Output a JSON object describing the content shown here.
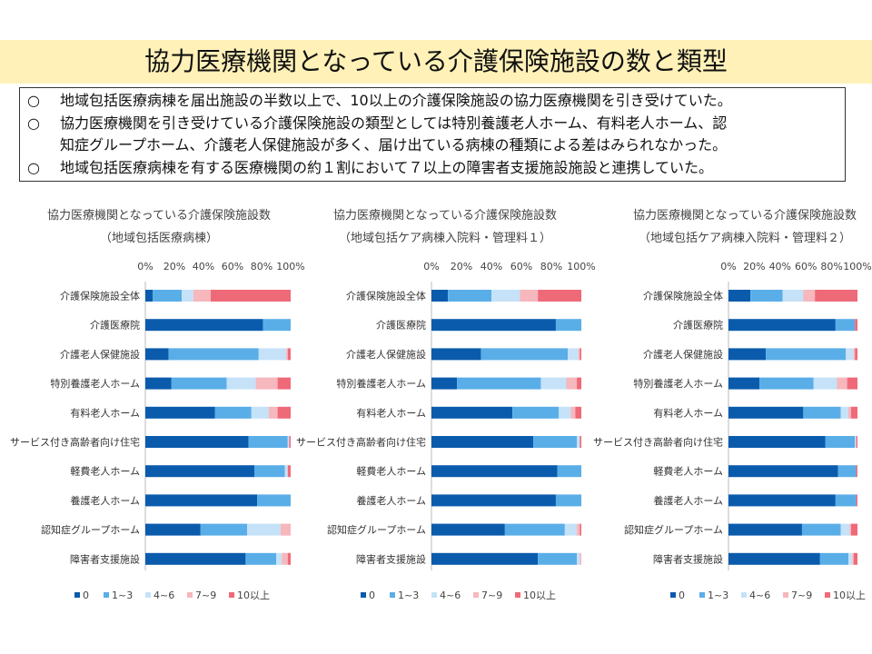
{
  "title": "協力医療機関となっている介護保険施設の数と類型",
  "summary": {
    "bullet1": "○",
    "line1": "地域包括医療病棟を届出施設の半数以上で、10以上の介護保険施設の協力医療機関を引き受けていた。",
    "bullet2": "○",
    "line2a": "協力医療機関を引き受けている介護保険施設の類型としては特別養護老人ホーム、有料老人ホーム、認",
    "line2b": "知症グループホーム、介護老人保健施設が多く、届け出ている病棟の種類による差はみられなかった。",
    "bullet3": "○",
    "line3": "地域包括医療病棟を有する医療機関の約１割において７以上の障害者支援施設施設と連携していた。"
  },
  "colors": [
    "#0b5bad",
    "#5aaee8",
    "#c5e2f8",
    "#f6b7bd",
    "#ef6a79"
  ],
  "chart_data": [
    {
      "type": "bar",
      "orientation": "horizontal",
      "stacked": true,
      "title": "協力医療機関となっている介護保険施設数",
      "subtitle": "（地域包括医療病棟）",
      "xlim": [
        0,
        100
      ],
      "x_ticks": [
        "0%",
        "20%",
        "40%",
        "60%",
        "80%",
        "100%"
      ],
      "categories": [
        "介護保険施設全体",
        "介護医療院",
        "介護老人保健施設",
        "特別養護老人ホーム",
        "有料老人ホーム",
        "サービス付き高齢者向け住宅",
        "軽費老人ホーム",
        "養護老人ホーム",
        "認知症グループホーム",
        "障害者支援施設"
      ],
      "series": [
        {
          "name": "0",
          "values": [
            5,
            81,
            16,
            18,
            48,
            71,
            75,
            77,
            38,
            69
          ]
        },
        {
          "name": "1~3",
          "values": [
            20,
            19,
            62,
            38,
            25,
            27,
            21,
            23,
            32,
            21
          ]
        },
        {
          "name": "4~6",
          "values": [
            8,
            0,
            19,
            20,
            12,
            1,
            2,
            0,
            23,
            4
          ]
        },
        {
          "name": "7~9",
          "values": [
            12,
            0,
            1,
            15,
            6,
            0,
            0,
            0,
            7,
            4
          ]
        },
        {
          "name": "10以上",
          "values": [
            55,
            0,
            2,
            9,
            9,
            1,
            2,
            0,
            0,
            2
          ]
        }
      ]
    },
    {
      "type": "bar",
      "orientation": "horizontal",
      "stacked": true,
      "title": "協力医療機関となっている介護保険施設数",
      "subtitle": "（地域包括ケア病棟入院料・管理料１）",
      "xlim": [
        0,
        100
      ],
      "x_ticks": [
        "0%",
        "20%",
        "40%",
        "60%",
        "80%",
        "100%"
      ],
      "categories": [
        "介護保険施設全体",
        "介護医療院",
        "介護老人保健施設",
        "特別養護老人ホーム",
        "有料老人ホーム",
        "サービス付き高齢者向け住宅",
        "軽費老人ホーム",
        "養護老人ホーム",
        "認知症グループホーム",
        "障害者支援施設"
      ],
      "series": [
        {
          "name": "0",
          "values": [
            11,
            83,
            33,
            17,
            54,
            68,
            84,
            83,
            49,
            71
          ]
        },
        {
          "name": "1~3",
          "values": [
            29,
            17,
            58,
            56,
            31,
            29,
            16,
            17,
            40,
            26
          ]
        },
        {
          "name": "4~6",
          "values": [
            19,
            0,
            7,
            17,
            8,
            2,
            0,
            0,
            8,
            2
          ]
        },
        {
          "name": "7~9",
          "values": [
            12,
            0,
            1,
            7,
            3,
            0,
            0,
            0,
            2,
            1
          ]
        },
        {
          "name": "10以上",
          "values": [
            29,
            0,
            1,
            3,
            4,
            1,
            0,
            0,
            1,
            0
          ]
        }
      ]
    },
    {
      "type": "bar",
      "orientation": "horizontal",
      "stacked": true,
      "title": "協力医療機関となっている介護保険施設数",
      "subtitle": "（地域包括ケア病棟入院料・管理料２）",
      "xlim": [
        0,
        100
      ],
      "x_ticks": [
        "0%",
        "20%",
        "40%",
        "60%",
        "80%",
        "100%"
      ],
      "categories": [
        "介護保険施設全体",
        "介護医療院",
        "介護老人保健施設",
        "特別養護老人ホーム",
        "有料老人ホーム",
        "サービス付き高齢者向け住宅",
        "軽費老人ホーム",
        "養護老人ホーム",
        "認知症グループホーム",
        "障害者支援施設"
      ],
      "series": [
        {
          "name": "0",
          "values": [
            17,
            83,
            29,
            24,
            58,
            75,
            85,
            83,
            57,
            71
          ]
        },
        {
          "name": "1~3",
          "values": [
            25,
            15,
            62,
            42,
            29,
            23,
            14,
            16,
            30,
            22
          ]
        },
        {
          "name": "4~6",
          "values": [
            16,
            0,
            6,
            18,
            6,
            1,
            0,
            0,
            7,
            3
          ]
        },
        {
          "name": "7~9",
          "values": [
            9,
            0,
            1,
            8,
            2,
            0,
            0,
            0,
            1,
            1
          ]
        },
        {
          "name": "10以上",
          "values": [
            33,
            2,
            2,
            8,
            5,
            1,
            1,
            1,
            5,
            3
          ]
        }
      ]
    }
  ]
}
